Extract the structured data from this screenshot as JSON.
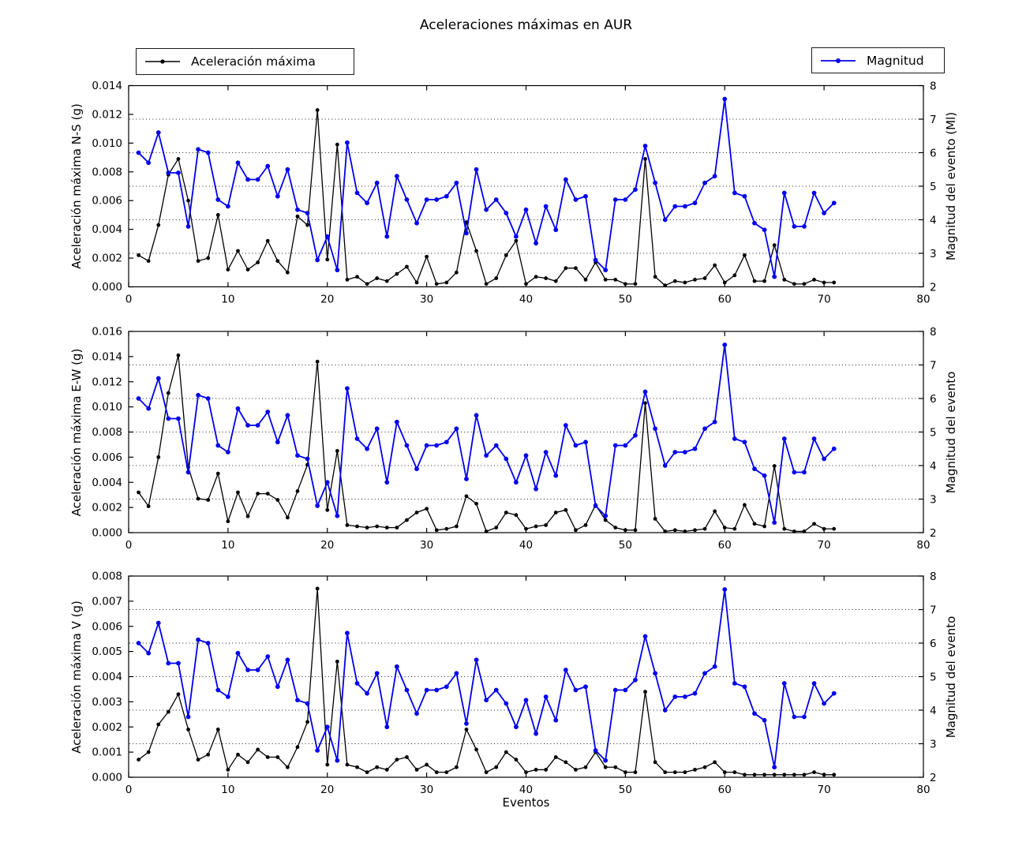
{
  "chart_data": {
    "type": "line",
    "title": "Aceleraciones máximas en AUR",
    "xlabel": "Eventos",
    "xlim": [
      0,
      80
    ],
    "xticks": [
      0,
      10,
      20,
      30,
      40,
      50,
      60,
      70,
      80
    ],
    "grid": "horizontal dotted at right-axis integer magnitudes",
    "legend": [
      {
        "label": "Aceleración máxima",
        "color": "#000000"
      },
      {
        "label": "Magnitud",
        "color": "#0000ee"
      }
    ],
    "x": [
      1,
      2,
      3,
      4,
      5,
      6,
      7,
      8,
      9,
      10,
      11,
      12,
      13,
      14,
      15,
      16,
      17,
      18,
      19,
      20,
      21,
      22,
      23,
      24,
      25,
      26,
      27,
      28,
      29,
      30,
      31,
      32,
      33,
      34,
      35,
      36,
      37,
      38,
      39,
      40,
      41,
      42,
      43,
      44,
      45,
      46,
      47,
      48,
      49,
      50,
      51,
      52,
      53,
      54,
      55,
      56,
      57,
      58,
      59,
      60,
      61,
      62,
      63,
      64,
      65,
      66,
      67,
      68,
      69,
      70,
      71
    ],
    "magnitud_series": {
      "name": "Magnitud",
      "axis": "right",
      "color": "#0000ee",
      "values": [
        6.0,
        5.7,
        6.6,
        5.4,
        5.4,
        3.8,
        6.1,
        6.0,
        4.6,
        4.4,
        5.7,
        5.2,
        5.2,
        5.6,
        4.7,
        5.5,
        4.3,
        4.2,
        2.8,
        3.5,
        2.5,
        6.3,
        4.8,
        4.5,
        5.1,
        3.5,
        5.3,
        4.6,
        3.9,
        4.6,
        4.6,
        4.7,
        5.1,
        3.6,
        5.5,
        4.3,
        4.6,
        4.2,
        3.5,
        4.3,
        3.3,
        4.4,
        3.7,
        5.2,
        4.6,
        4.7,
        2.8,
        2.5,
        4.6,
        4.6,
        4.9,
        6.2,
        5.1,
        4.0,
        4.4,
        4.4,
        4.5,
        5.1,
        5.3,
        7.6,
        4.8,
        4.7,
        3.9,
        3.7,
        2.3,
        4.8,
        3.8,
        3.8,
        4.8,
        4.2,
        4.5
      ]
    },
    "subplots": [
      {
        "ylabel_left": "Aceleración máxima N-S (g)",
        "ylabel_right": "Magnitud del evento (Ml)",
        "ylim_left": [
          0,
          0.014
        ],
        "yticks_left": [
          "0.000",
          "0.002",
          "0.004",
          "0.006",
          "0.008",
          "0.010",
          "0.012",
          "0.014"
        ],
        "ylim_right": [
          2,
          8
        ],
        "yticks_right": [
          2,
          3,
          4,
          5,
          6,
          7,
          8
        ],
        "grid_right": [
          3,
          4,
          5,
          6,
          7
        ],
        "accel_series": {
          "name": "Aceleración máxima",
          "axis": "left",
          "color": "#000000",
          "values": [
            0.0022,
            0.0018,
            0.0043,
            0.0078,
            0.0089,
            0.006,
            0.0018,
            0.002,
            0.005,
            0.0012,
            0.0025,
            0.0012,
            0.0017,
            0.0032,
            0.0018,
            0.001,
            0.0049,
            0.0043,
            0.0123,
            0.0019,
            0.0099,
            0.0005,
            0.0007,
            0.0002,
            0.0006,
            0.0004,
            0.0009,
            0.0014,
            0.0003,
            0.0021,
            0.0002,
            0.0003,
            0.001,
            0.0045,
            0.0025,
            0.0002,
            0.0006,
            0.0022,
            0.0032,
            0.0002,
            0.0007,
            0.0006,
            0.0004,
            0.0013,
            0.0013,
            0.0005,
            0.0017,
            0.0005,
            0.0005,
            0.0002,
            0.0002,
            0.0089,
            0.0007,
            0.0001,
            0.0004,
            0.0003,
            0.0005,
            0.0006,
            0.0015,
            0.0003,
            0.0008,
            0.0022,
            0.0004,
            0.0004,
            0.0029,
            0.0005,
            0.0002,
            0.0002,
            0.0005,
            0.0003,
            0.0003
          ]
        }
      },
      {
        "ylabel_left": "Aceleración máxima E-W (g)",
        "ylabel_right": "Magnitud del evento",
        "ylim_left": [
          0,
          0.016
        ],
        "yticks_left": [
          "0.000",
          "0.002",
          "0.004",
          "0.006",
          "0.008",
          "0.010",
          "0.012",
          "0.014",
          "0.016"
        ],
        "ylim_right": [
          2,
          8
        ],
        "yticks_right": [
          2,
          3,
          4,
          5,
          6,
          7,
          8
        ],
        "grid_right": [
          3,
          4,
          5,
          6,
          7
        ],
        "accel_series": {
          "name": "Aceleración máxima",
          "axis": "left",
          "color": "#000000",
          "values": [
            0.0032,
            0.0021,
            0.006,
            0.0111,
            0.0141,
            0.0052,
            0.0027,
            0.0026,
            0.0047,
            0.0009,
            0.0032,
            0.0013,
            0.0031,
            0.0031,
            0.0026,
            0.0012,
            0.0033,
            0.0054,
            0.0136,
            0.0018,
            0.0065,
            0.0006,
            0.0005,
            0.0004,
            0.0005,
            0.0004,
            0.0004,
            0.001,
            0.0016,
            0.0019,
            0.0002,
            0.0003,
            0.0005,
            0.0029,
            0.0023,
            0.0001,
            0.0004,
            0.0016,
            0.0014,
            0.0003,
            0.0005,
            0.0006,
            0.0016,
            0.0018,
            0.0002,
            0.0006,
            0.0022,
            0.001,
            0.0004,
            0.0002,
            0.0002,
            0.0103,
            0.0011,
            0.0001,
            0.0002,
            0.0001,
            0.0002,
            0.0003,
            0.0017,
            0.0004,
            0.0003,
            0.0022,
            0.0007,
            0.0005,
            0.0053,
            0.0003,
            0.0001,
            0.0001,
            0.0007,
            0.0003,
            0.0003
          ]
        }
      },
      {
        "ylabel_left": "Aceleración máxima V (g)",
        "ylabel_right": "Magnitud del evento",
        "ylim_left": [
          0,
          0.008
        ],
        "yticks_left": [
          "0.000",
          "0.001",
          "0.002",
          "0.003",
          "0.004",
          "0.005",
          "0.006",
          "0.007",
          "0.008"
        ],
        "ylim_right": [
          2,
          8
        ],
        "yticks_right": [
          2,
          3,
          4,
          5,
          6,
          7,
          8
        ],
        "grid_right": [
          3,
          4,
          5,
          6,
          7
        ],
        "accel_series": {
          "name": "Aceleración máxima",
          "axis": "left",
          "color": "#000000",
          "values": [
            0.0007,
            0.001,
            0.0021,
            0.0026,
            0.0033,
            0.0019,
            0.0007,
            0.0009,
            0.0019,
            0.0003,
            0.0009,
            0.0006,
            0.0011,
            0.0008,
            0.0008,
            0.0004,
            0.0012,
            0.0022,
            0.0075,
            0.0005,
            0.0046,
            0.0005,
            0.0004,
            0.0002,
            0.0004,
            0.0003,
            0.0007,
            0.0008,
            0.0003,
            0.0005,
            0.0002,
            0.0002,
            0.0004,
            0.0019,
            0.0011,
            0.0002,
            0.0004,
            0.001,
            0.0007,
            0.0002,
            0.0003,
            0.0003,
            0.0008,
            0.0006,
            0.0003,
            0.0004,
            0.001,
            0.0004,
            0.0004,
            0.0002,
            0.0002,
            0.0034,
            0.0006,
            0.0002,
            0.0002,
            0.0002,
            0.0003,
            0.0004,
            0.0006,
            0.0002,
            0.0002,
            0.0001,
            0.0001,
            0.0001,
            0.0001,
            0.0001,
            0.0001,
            0.0001,
            0.0002,
            0.0001,
            0.0001
          ]
        }
      }
    ]
  }
}
